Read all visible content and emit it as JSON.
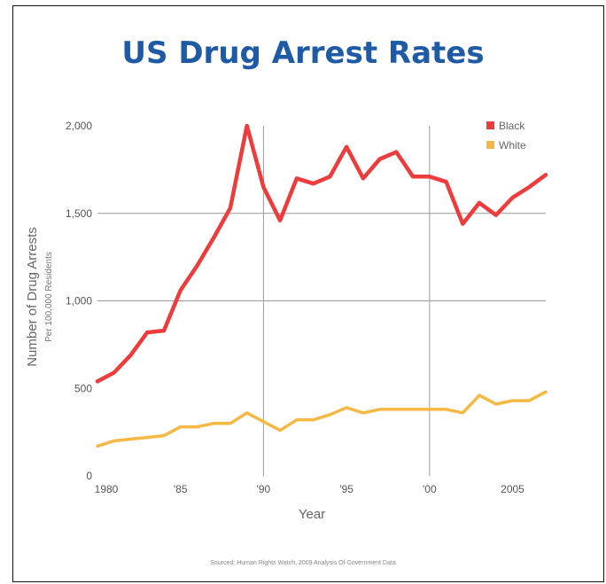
{
  "chart_data": {
    "type": "line",
    "title": "US Drug Arrest Rates",
    "xlabel": "Year",
    "ylabel": "Number of Drug Arrests",
    "ylabel_sub": "Per 100,000 Residents",
    "source": "Sourced: Human Rights Watch, 2009 Analysis Of Government Data",
    "xlim": [
      1980,
      2007
    ],
    "ylim": [
      0,
      2000
    ],
    "x_ticks": [
      {
        "value": 1980,
        "label": "1980"
      },
      {
        "value": 1985,
        "label": "'85"
      },
      {
        "value": 1990,
        "label": "'90"
      },
      {
        "value": 1995,
        "label": "'95"
      },
      {
        "value": 2000,
        "label": "'00"
      },
      {
        "value": 2005,
        "label": "2005"
      }
    ],
    "y_ticks": [
      {
        "value": 0,
        "label": "0"
      },
      {
        "value": 500,
        "label": "500"
      },
      {
        "value": 1000,
        "label": "1,000"
      },
      {
        "value": 1500,
        "label": "1,500"
      },
      {
        "value": 2000,
        "label": "2,000"
      }
    ],
    "vertical_grid": [
      1990,
      2000
    ],
    "horizontal_grid": [
      1000,
      1500
    ],
    "legend_position": "top-right",
    "x": [
      1980,
      1981,
      1982,
      1983,
      1984,
      1985,
      1986,
      1987,
      1988,
      1989,
      1990,
      1991,
      1992,
      1993,
      1994,
      1995,
      1996,
      1997,
      1998,
      1999,
      2000,
      2001,
      2002,
      2003,
      2004,
      2005,
      2006,
      2007
    ],
    "series": [
      {
        "name": "Black",
        "color": "#ee3b3b",
        "values": [
          540,
          590,
          690,
          820,
          830,
          1060,
          1200,
          1360,
          1530,
          2000,
          1650,
          1460,
          1700,
          1670,
          1710,
          1880,
          1700,
          1810,
          1850,
          1710,
          1710,
          1680,
          1440,
          1560,
          1490,
          1590,
          1650,
          1720
        ]
      },
      {
        "name": "White",
        "color": "#f6b844",
        "values": [
          170,
          200,
          210,
          220,
          230,
          280,
          280,
          300,
          300,
          360,
          310,
          260,
          320,
          320,
          350,
          390,
          360,
          380,
          380,
          380,
          380,
          380,
          360,
          460,
          410,
          430,
          430,
          480
        ]
      }
    ]
  }
}
